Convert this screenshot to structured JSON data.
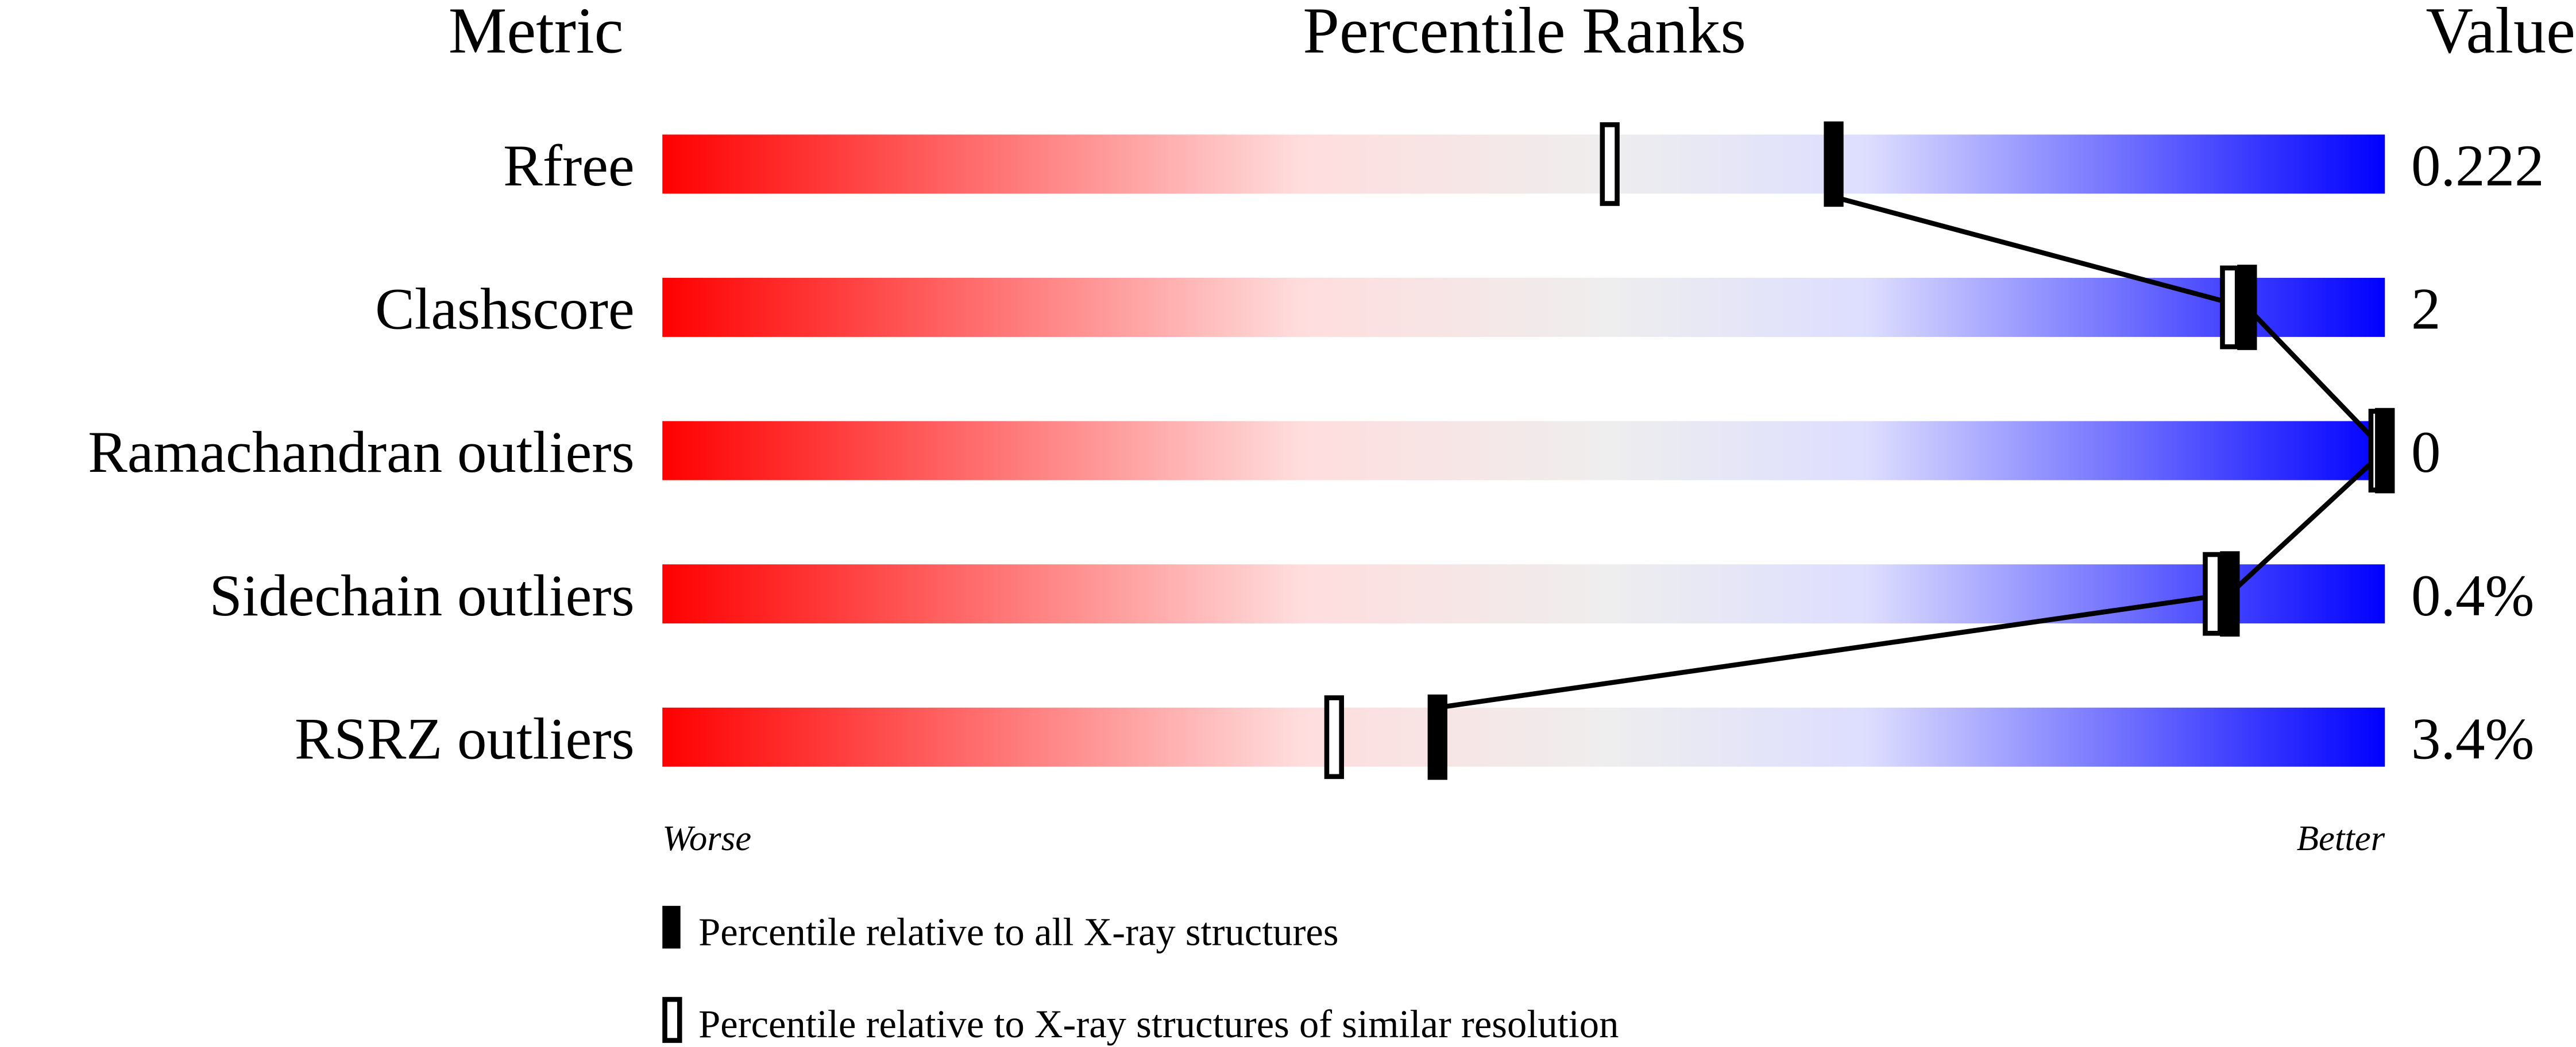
{
  "chart_data": {
    "type": "percentile-bar",
    "headers": {
      "metric": "Metric",
      "ranks": "Percentile Ranks",
      "value": "Value"
    },
    "xlim": [
      0,
      100
    ],
    "axis_labels": {
      "left": "Worse",
      "right": "Better"
    },
    "gradient_colors": [
      "#ff0000",
      "#ffdddd",
      "#eeeeee",
      "#ddddff",
      "#0000ff"
    ],
    "metrics": [
      {
        "name": "Rfree",
        "value": "0.222",
        "percentile_all": 68,
        "percentile_similar": 55
      },
      {
        "name": "Clashscore",
        "value": "2",
        "percentile_all": 92,
        "percentile_similar": 91
      },
      {
        "name": "Ramachandran outliers",
        "value": "0",
        "percentile_all": 100,
        "percentile_similar": 100
      },
      {
        "name": "Sidechain outliers",
        "value": "0.4%",
        "percentile_all": 91,
        "percentile_similar": 90
      },
      {
        "name": "RSRZ outliers",
        "value": "3.4%",
        "percentile_all": 45,
        "percentile_similar": 39
      }
    ],
    "legend": [
      {
        "marker": "filled",
        "label": "Percentile relative to all X-ray structures"
      },
      {
        "marker": "hollow",
        "label": "Percentile relative to X-ray structures of similar resolution"
      }
    ]
  }
}
